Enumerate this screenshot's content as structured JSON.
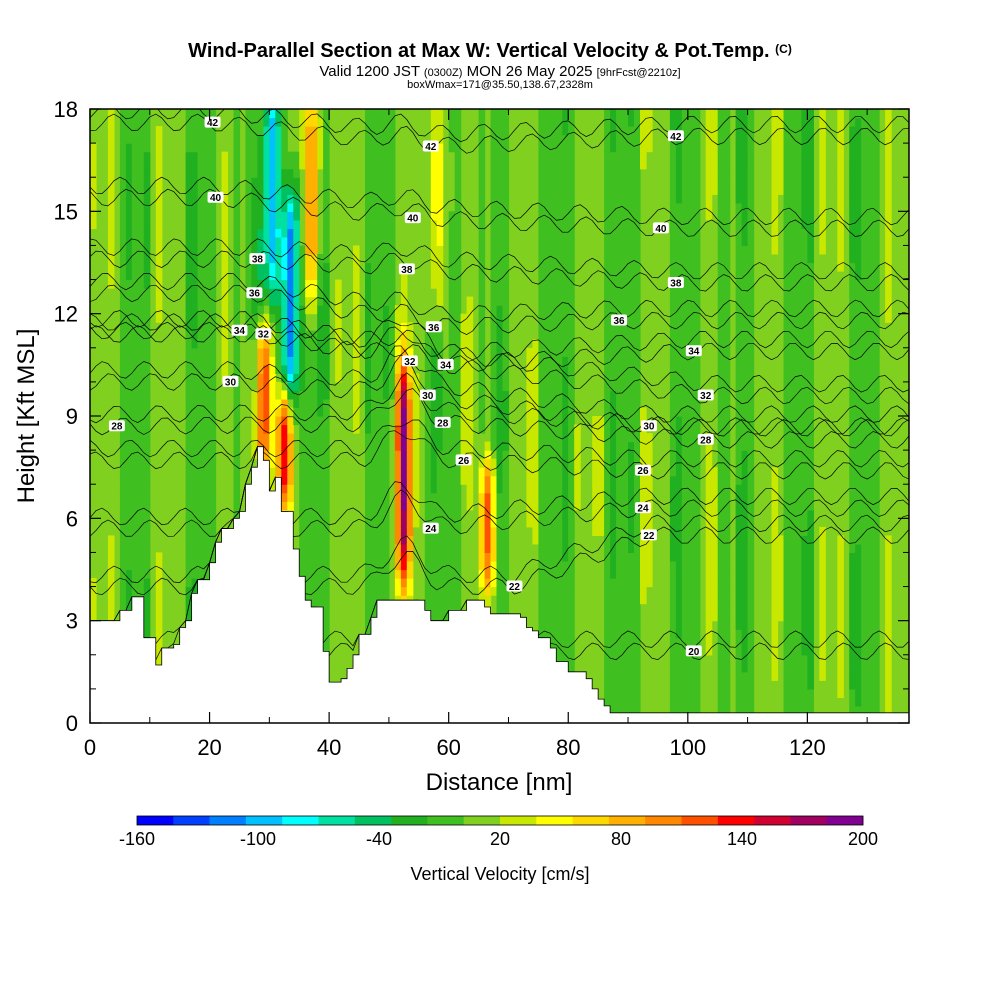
{
  "title": {
    "main": "Wind-Parallel Section at Max W: Vertical Velocity & Pot.Temp.",
    "copyright": "(C)",
    "line2_a": "Valid 1200 JST",
    "line2_b": "(0300Z)",
    "line2_c": "MON 26 May 2025",
    "line2_d": "[9hrFcst@2210z]",
    "line3": "boxWmax=171@35.50,138.67,2328m"
  },
  "chart_data": {
    "type": "heatmap",
    "xlabel": "Distance [nm]",
    "ylabel": "Height [Kft MSL]",
    "xlim": [
      0,
      137
    ],
    "ylim": [
      0,
      18
    ],
    "x_ticks": [
      "0",
      "20",
      "40",
      "60",
      "80",
      "100",
      "120"
    ],
    "y_ticks": [
      "0",
      "3",
      "6",
      "9",
      "12",
      "15",
      "18"
    ],
    "colorbar": {
      "label": "Vertical Velocity [cm/s]",
      "tick_labels": [
        "-160",
        "-100",
        "-40",
        "20",
        "80",
        "140",
        "200"
      ],
      "range": [
        -160,
        200
      ],
      "colors": [
        "#0000ff",
        "#0040ff",
        "#0080ff",
        "#00c0ff",
        "#00ffff",
        "#00e0a0",
        "#00c060",
        "#20b020",
        "#40c020",
        "#80d020",
        "#c8e800",
        "#ffff00",
        "#ffd800",
        "#ffb000",
        "#ff8800",
        "#ff5000",
        "#ff0000",
        "#d00030",
        "#a00060",
        "#800090"
      ]
    },
    "max_w": {
      "value": 171,
      "x": 52.5,
      "height": 7.6
    },
    "updraft_cores": [
      {
        "x": 52.5,
        "from": 4.5,
        "to": 10,
        "w": 171
      },
      {
        "x": 32.5,
        "from": 7,
        "to": 9,
        "w": 140
      },
      {
        "x": 29,
        "from": 8,
        "to": 11,
        "w": 130
      },
      {
        "x": 37,
        "from": 13,
        "to": 18,
        "w": 100
      },
      {
        "x": 66.5,
        "from": 4.5,
        "to": 7,
        "w": 110
      },
      {
        "x": 58,
        "from": 12,
        "to": 18,
        "w": 50
      }
    ],
    "downdraft_cores": [
      {
        "x": 30.5,
        "from": 13,
        "to": 18,
        "w": -110
      },
      {
        "x": 33.5,
        "from": 10,
        "to": 15,
        "w": -150
      }
    ],
    "theta_labels": [
      {
        "text": "20",
        "x": 101,
        "y": 2.1
      },
      {
        "text": "22",
        "x": 71,
        "y": 4.0
      },
      {
        "text": "22",
        "x": 93.5,
        "y": 5.5
      },
      {
        "text": "24",
        "x": 57,
        "y": 5.7
      },
      {
        "text": "24",
        "x": 92.5,
        "y": 6.3
      },
      {
        "text": "26",
        "x": 62.5,
        "y": 7.7
      },
      {
        "text": "26",
        "x": 92.5,
        "y": 7.4
      },
      {
        "text": "28",
        "x": 4.5,
        "y": 8.7
      },
      {
        "text": "28",
        "x": 59,
        "y": 8.8
      },
      {
        "text": "28",
        "x": 103,
        "y": 8.3
      },
      {
        "text": "30",
        "x": 23.5,
        "y": 10.0
      },
      {
        "text": "30",
        "x": 56.5,
        "y": 9.6
      },
      {
        "text": "30",
        "x": 93.5,
        "y": 8.7
      },
      {
        "text": "32",
        "x": 29,
        "y": 11.4
      },
      {
        "text": "32",
        "x": 53.5,
        "y": 10.6
      },
      {
        "text": "32",
        "x": 103,
        "y": 9.6
      },
      {
        "text": "34",
        "x": 25,
        "y": 11.5
      },
      {
        "text": "34",
        "x": 59.5,
        "y": 10.5
      },
      {
        "text": "34",
        "x": 101,
        "y": 10.9
      },
      {
        "text": "36",
        "x": 27.5,
        "y": 12.6
      },
      {
        "text": "36",
        "x": 57.5,
        "y": 11.6
      },
      {
        "text": "36",
        "x": 88.5,
        "y": 11.8
      },
      {
        "text": "38",
        "x": 28,
        "y": 13.6
      },
      {
        "text": "38",
        "x": 53,
        "y": 13.3
      },
      {
        "text": "38",
        "x": 98,
        "y": 12.9
      },
      {
        "text": "40",
        "x": 21,
        "y": 15.4
      },
      {
        "text": "40",
        "x": 54,
        "y": 14.8
      },
      {
        "text": "40",
        "x": 95.5,
        "y": 14.5
      },
      {
        "text": "42",
        "x": 20.5,
        "y": 17.6
      },
      {
        "text": "42",
        "x": 57,
        "y": 16.9
      },
      {
        "text": "42",
        "x": 98,
        "y": 17.2
      }
    ],
    "terrain": [
      [
        0,
        3
      ],
      [
        3,
        3
      ],
      [
        5,
        3.3
      ],
      [
        7,
        3.7
      ],
      [
        9,
        2.5
      ],
      [
        11,
        1.7
      ],
      [
        12,
        2.2
      ],
      [
        14,
        2.3
      ],
      [
        15,
        2.8
      ],
      [
        16,
        3
      ],
      [
        17,
        3.8
      ],
      [
        18,
        4.2
      ],
      [
        20,
        4.7
      ],
      [
        21,
        5.3
      ],
      [
        22,
        5.7
      ],
      [
        24,
        6
      ],
      [
        25,
        6.2
      ],
      [
        26,
        7
      ],
      [
        27,
        7.5
      ],
      [
        28,
        8.1
      ],
      [
        29,
        7.7
      ],
      [
        30,
        6.8
      ],
      [
        31,
        7.2
      ],
      [
        32,
        6.2
      ],
      [
        34,
        5.1
      ],
      [
        35,
        4.3
      ],
      [
        36,
        3.6
      ],
      [
        37,
        3.4
      ],
      [
        38,
        3.4
      ],
      [
        39,
        2.1
      ],
      [
        40,
        1.2
      ],
      [
        42,
        1.3
      ],
      [
        43,
        1.6
      ],
      [
        44,
        2
      ],
      [
        45,
        2.6
      ],
      [
        47,
        3.1
      ],
      [
        48,
        3.6
      ],
      [
        50,
        3.6
      ],
      [
        55,
        3.6
      ],
      [
        56,
        3.3
      ],
      [
        57,
        3
      ],
      [
        58,
        3
      ],
      [
        60,
        3.3
      ],
      [
        63,
        3.6
      ],
      [
        66,
        3.4
      ],
      [
        67,
        3.2
      ],
      [
        68,
        3.2
      ],
      [
        72,
        3.1
      ],
      [
        73,
        2.8
      ],
      [
        74,
        2.7
      ],
      [
        75,
        2.5
      ],
      [
        77,
        2.2
      ],
      [
        78,
        1.8
      ],
      [
        80,
        1.5
      ],
      [
        83,
        1.3
      ],
      [
        84,
        1
      ],
      [
        85,
        0.7
      ],
      [
        86,
        0.5
      ],
      [
        87,
        0.3
      ],
      [
        137,
        0.3
      ]
    ]
  }
}
